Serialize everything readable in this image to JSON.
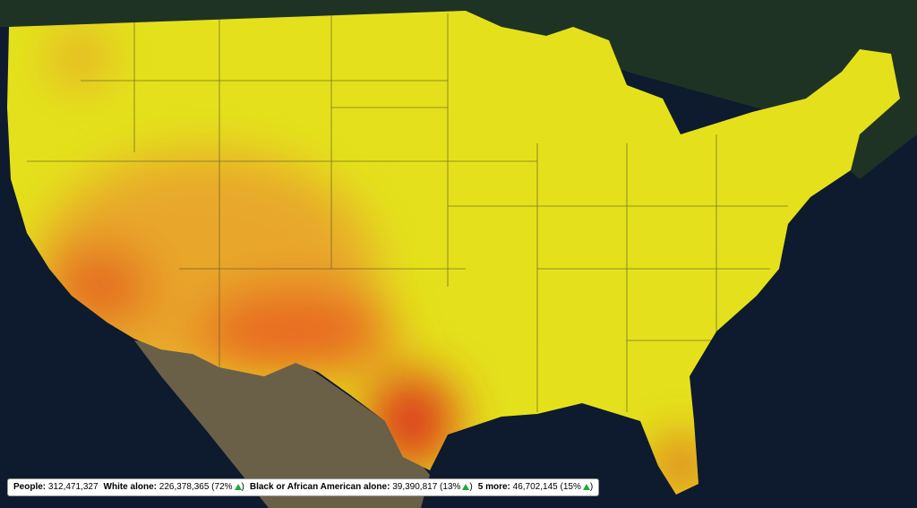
{
  "status_bar": {
    "stats": [
      {
        "label": "People:",
        "value": "312,471,327"
      },
      {
        "label": "White alone:",
        "value": "226,378,365",
        "share": "72%"
      },
      {
        "label": "Black or African American alone:",
        "value": "39,390,817",
        "share": "13%"
      },
      {
        "label": "5 more:",
        "value": "46,702,145",
        "share": "15%"
      }
    ]
  }
}
